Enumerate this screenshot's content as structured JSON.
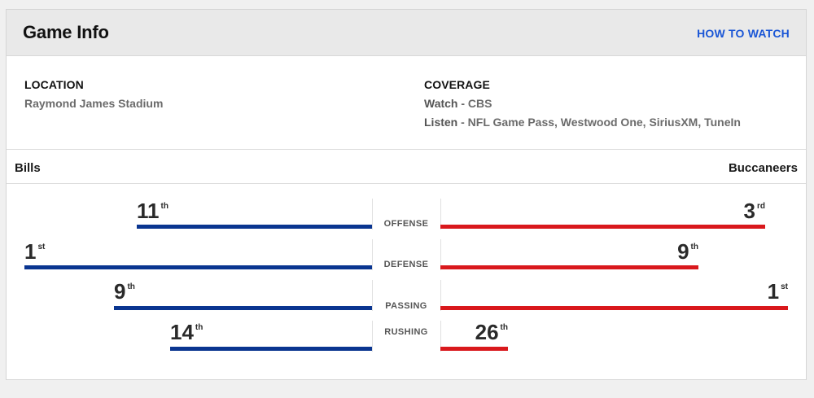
{
  "header": {
    "title": "Game Info",
    "how_to_watch": "HOW TO WATCH"
  },
  "location": {
    "label": "LOCATION",
    "venue": "Raymond James Stadium"
  },
  "coverage": {
    "label": "COVERAGE",
    "watch_lead": "Watch",
    "watch_value": " - CBS",
    "listen_lead": "Listen",
    "listen_value": " - NFL Game Pass, Westwood One, SiriusXM, TuneIn"
  },
  "teams": {
    "away": "Bills",
    "home": "Buccaneers"
  },
  "colors": {
    "away": "#0a3590",
    "home": "#d9181c",
    "link": "#1a56d6"
  },
  "stats": [
    {
      "label": "OFFENSE",
      "away_rank": "11",
      "away_suffix": "th",
      "home_rank": "3",
      "home_suffix": "rd"
    },
    {
      "label": "DEFENSE",
      "away_rank": "1",
      "away_suffix": "st",
      "home_rank": "9",
      "home_suffix": "th"
    },
    {
      "label": "PASSING",
      "away_rank": "9",
      "away_suffix": "th",
      "home_rank": "1",
      "home_suffix": "st"
    },
    {
      "label": "RUSHING",
      "away_rank": "14",
      "away_suffix": "th",
      "home_rank": "26",
      "home_suffix": "th"
    }
  ]
}
